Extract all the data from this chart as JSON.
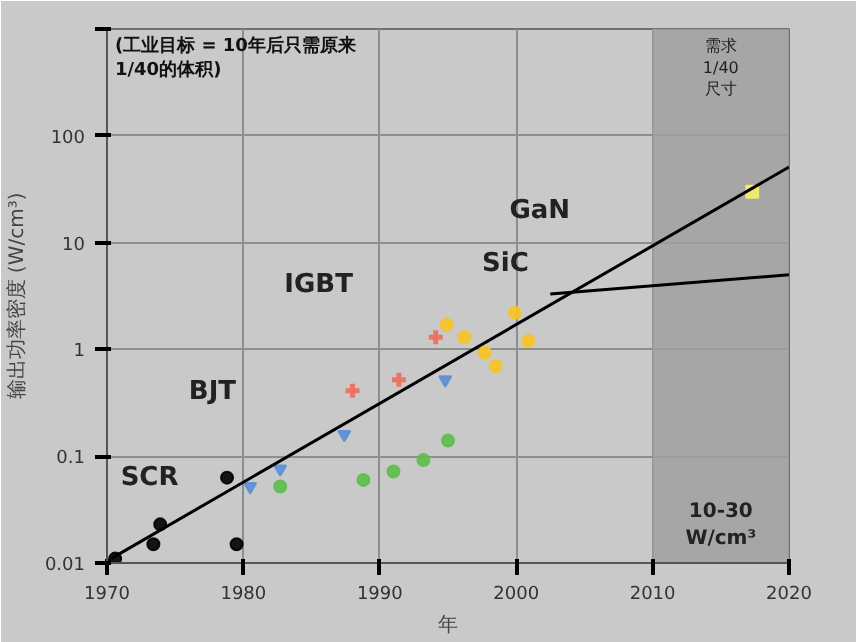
{
  "chart_data": {
    "type": "scatter",
    "xlabel": "年",
    "ylabel": "输出功率密度 (W/cm³)",
    "xlim": [
      1970,
      2020
    ],
    "ylim": [
      0.01,
      1000
    ],
    "log": "y",
    "xticks": [
      1970,
      1980,
      1990,
      2000,
      2010,
      2020
    ],
    "yticks": [
      0.01,
      0.1,
      1,
      10,
      100,
      {
        "value": 1000,
        "label": null
      }
    ],
    "grid": true,
    "series": [
      {
        "marker": "circle",
        "color": "#000000",
        "x": [
          1970.6,
          1973.4,
          1973.9,
          1978.8,
          1979.5
        ],
        "values": [
          0.011,
          0.015,
          0.023,
          0.063,
          0.015
        ]
      },
      {
        "marker": "triangle",
        "color": "#5b8fd6",
        "x": [
          1980.5,
          1982.7,
          1987.4,
          1994.8
        ],
        "values": [
          0.052,
          0.076,
          0.16,
          0.52
        ]
      },
      {
        "marker": "circle",
        "color": "#5cbf4a",
        "x": [
          1982.7,
          1988.8,
          1991,
          1993.2,
          1995
        ],
        "values": [
          0.052,
          0.06,
          0.072,
          0.092,
          0.14
        ]
      },
      {
        "marker": "cross",
        "color": "#ee6a5a",
        "x": [
          1988,
          1991.4,
          1994.1
        ],
        "values": [
          0.41,
          0.52,
          1.3
        ]
      },
      {
        "marker": "circle",
        "color": "#f7c325",
        "x": [
          1994.9,
          1996.2,
          1997.7,
          1998.5,
          1999.9,
          2000.9
        ],
        "values": [
          1.7,
          1.3,
          0.93,
          0.7,
          2.2,
          1.2
        ]
      },
      {
        "marker": "square",
        "color": "#f4ef6a",
        "x": [
          2017.3
        ],
        "values": [
          30
        ]
      },
      {
        "type": "line",
        "color": "#000000",
        "x": [
          1970.3,
          2020
        ],
        "values": [
          0.011,
          51
        ]
      },
      {
        "type": "line",
        "color": "#000000",
        "x": [
          2002.5,
          2020
        ],
        "values": [
          3.3,
          5
        ]
      }
    ],
    "bands": [
      {
        "axis": "x",
        "from": 2010,
        "to": 2020,
        "label": "需求\n1/40\n尺寸",
        "color": "#a0a0a0"
      }
    ],
    "annotations": [
      "(工业目标 = 10年后只需原来\n1/40的体积)",
      "SCR",
      "BJT",
      "IGBT",
      "SiC",
      "GaN",
      "10-30\nW/cm³"
    ]
  }
}
